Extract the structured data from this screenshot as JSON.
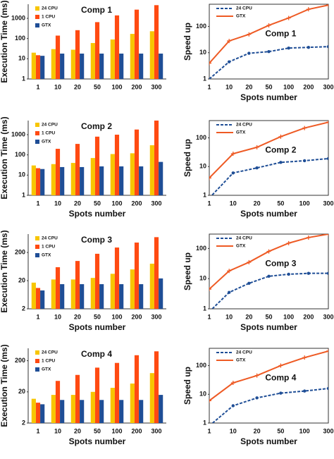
{
  "chart_data": [
    {
      "type": "bar",
      "title": "Comp 1",
      "ylabel": "Execution Time (ms)",
      "log_scale": true,
      "categories": [
        "1",
        "10",
        "20",
        "50",
        "100",
        "200",
        "300"
      ],
      "series": [
        {
          "name": "24 CPU",
          "color": "#f7c600",
          "values": [
            20,
            30,
            28,
            60,
            90,
            170,
            230
          ]
        },
        {
          "name": "1 CPU",
          "color": "#ff4a12",
          "values": [
            15,
            140,
            260,
            650,
            1400,
            2700,
            4500
          ]
        },
        {
          "name": "GTX",
          "color": "#1f4e96",
          "values": [
            14,
            18,
            18,
            18,
            18,
            18,
            18
          ]
        }
      ],
      "ylim": [
        1,
        5000
      ],
      "yticks": [
        1,
        10,
        100,
        1000
      ]
    },
    {
      "type": "line",
      "title": "Comp 1",
      "xlabel": "Spots number",
      "ylabel": "Speed up",
      "log_scale": true,
      "categories": [
        "1",
        "10",
        "20",
        "50",
        "100",
        "200",
        "300"
      ],
      "series": [
        {
          "name": "24 CPU",
          "color": "#1f4e96",
          "line_style": "dashed",
          "marker": "circle",
          "values": [
            1,
            4.5,
            9.5,
            11,
            15,
            16,
            17
          ]
        },
        {
          "name": "GTX",
          "color": "#ee5a24",
          "line_style": "solid",
          "marker": "plus",
          "values": [
            4,
            28,
            50,
            110,
            210,
            450,
            650
          ]
        }
      ],
      "ylim": [
        1,
        700
      ],
      "yticks": [
        1,
        10,
        100
      ]
    },
    {
      "type": "bar",
      "title": "Comp 2",
      "xlabel": "Spots number",
      "ylabel": "Execution Time (ms)",
      "log_scale": true,
      "categories": [
        "1",
        "10",
        "20",
        "50",
        "100",
        "200",
        "300"
      ],
      "series": [
        {
          "name": "24 CPU",
          "color": "#f7c600",
          "values": [
            30,
            35,
            40,
            70,
            110,
            120,
            300
          ]
        },
        {
          "name": "1 CPU",
          "color": "#ff4a12",
          "values": [
            22,
            200,
            350,
            800,
            1000,
            1800,
            5000
          ]
        },
        {
          "name": "GTX",
          "color": "#1f4e96",
          "values": [
            20,
            25,
            25,
            27,
            27,
            27,
            45
          ]
        }
      ],
      "ylim": [
        1,
        5000
      ],
      "yticks": [
        1,
        10,
        100,
        1000
      ]
    },
    {
      "type": "line",
      "title": "Comp 2",
      "xlabel": "Spots number",
      "ylabel": "Speed up",
      "log_scale": true,
      "categories": [
        "1",
        "10",
        "20",
        "50",
        "100",
        "300"
      ],
      "series": [
        {
          "name": "24 CPU",
          "color": "#1f4e96",
          "line_style": "dashed",
          "marker": "circle",
          "values": [
            0.8,
            6,
            9,
            14,
            16,
            19
          ]
        },
        {
          "name": "GTX",
          "color": "#ee5a24",
          "line_style": "solid",
          "marker": "plus",
          "values": [
            4,
            28,
            47,
            110,
            220,
            350
          ]
        }
      ],
      "ylim": [
        1,
        400
      ],
      "yticks": [
        1,
        10,
        100
      ]
    },
    {
      "type": "bar",
      "title": "Comp 3",
      "xlabel": "Spots number",
      "ylabel": "Execution Time (ms)",
      "log_scale": true,
      "categories": [
        "1",
        "10",
        "20",
        "50",
        "100",
        "200",
        "300"
      ],
      "series": [
        {
          "name": "24 CPU",
          "color": "#f7c600",
          "values": [
            17,
            22,
            22,
            25,
            35,
            50,
            80
          ]
        },
        {
          "name": "1 CPU",
          "color": "#ff4a12",
          "values": [
            11,
            60,
            100,
            180,
            300,
            450,
            700
          ]
        },
        {
          "name": "GTX",
          "color": "#1f4e96",
          "values": [
            9,
            15,
            15,
            15,
            15,
            15,
            24
          ]
        }
      ],
      "ylim": [
        2,
        900
      ],
      "yticks": [
        2,
        20,
        200
      ]
    },
    {
      "type": "line",
      "title": "Comp 3",
      "xlabel": "Spots number",
      "ylabel": "Speed up",
      "log_scale": true,
      "categories": [
        "1",
        "10",
        "20",
        "50",
        "100",
        "200",
        "300"
      ],
      "series": [
        {
          "name": "24 CPU",
          "color": "#1f4e96",
          "line_style": "dashed",
          "marker": "circle",
          "values": [
            0.8,
            3.5,
            7,
            12,
            14,
            15,
            15
          ]
        },
        {
          "name": "GTX",
          "color": "#ee5a24",
          "line_style": "solid",
          "marker": "plus",
          "values": [
            4.5,
            18,
            35,
            80,
            150,
            230,
            300
          ]
        }
      ],
      "ylim": [
        1,
        300
      ],
      "yticks": [
        1,
        10,
        100
      ]
    },
    {
      "type": "bar",
      "title": "Comp 4",
      "xlabel": "Spots number",
      "ylabel": "Execution Time (ms)",
      "log_scale": true,
      "categories": [
        "1",
        "10",
        "20",
        "50",
        "100",
        "200",
        "300"
      ],
      "series": [
        {
          "name": "24 CPU",
          "color": "#f7c600",
          "values": [
            12,
            16,
            16,
            20,
            27,
            37,
            80
          ]
        },
        {
          "name": "1 CPU",
          "color": "#ff4a12",
          "values": [
            9,
            45,
            70,
            120,
            170,
            300,
            400
          ]
        },
        {
          "name": "GTX",
          "color": "#1f4e96",
          "values": [
            8,
            11,
            11,
            11,
            11,
            11,
            16
          ]
        }
      ],
      "ylim": [
        2,
        500
      ],
      "yticks": [
        2,
        20,
        200
      ]
    },
    {
      "type": "line",
      "title": "Comp 4",
      "xlabel": "Spots number",
      "ylabel": "Speed up",
      "log_scale": true,
      "categories": [
        "1",
        "10",
        "20",
        "50",
        "100",
        "300"
      ],
      "series": [
        {
          "name": "24 CPU",
          "color": "#1f4e96",
          "line_style": "dashed",
          "marker": "circle",
          "values": [
            0.8,
            4,
            7.5,
            11,
            13,
            16
          ]
        },
        {
          "name": "GTX",
          "color": "#ee5a24",
          "line_style": "solid",
          "marker": "plus",
          "values": [
            6,
            25,
            45,
            100,
            190,
            320
          ]
        }
      ],
      "ylim": [
        1,
        400
      ],
      "yticks": [
        1,
        10,
        100
      ]
    }
  ]
}
